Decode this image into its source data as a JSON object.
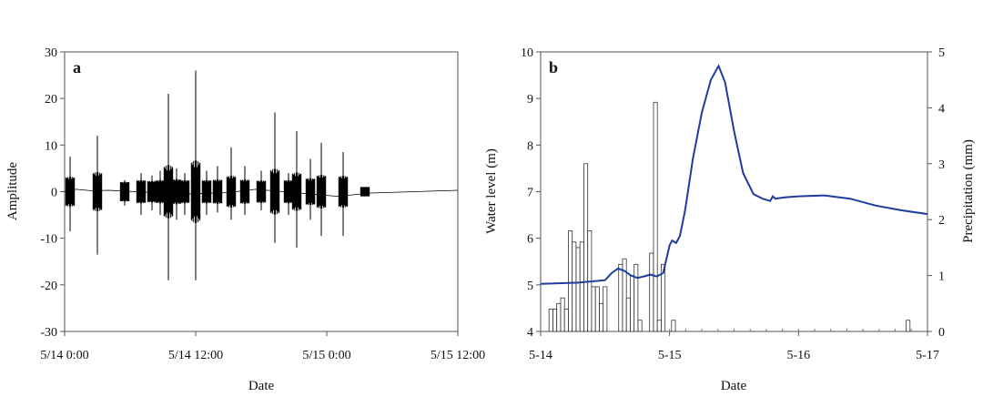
{
  "chart_data": [
    {
      "type": "line",
      "panel_label": "a",
      "xlabel": "Date",
      "ylabel": "Amplitude",
      "ylim": [
        -30,
        30
      ],
      "yticks": [
        -30,
        -20,
        -10,
        0,
        10,
        20,
        30
      ],
      "xlim": [
        "5/14 0:00",
        "5/15 12:00"
      ],
      "xtick_labels": [
        "5/14 0:00",
        "5/14 12:00",
        "5/15 0:00",
        "5/15 12:00"
      ],
      "grid": false,
      "series": [
        {
          "color": "#000000",
          "bursts": [
            {
              "x": "5/14 0:30",
              "min": -8.5,
              "max": 7.5
            },
            {
              "x": "5/14 3:00",
              "min": -13.5,
              "max": 12.0
            },
            {
              "x": "5/14 5:30",
              "min": -3.0,
              "max": 2.5
            },
            {
              "x": "5/14 7:00",
              "min": -5.0,
              "max": 4.0
            },
            {
              "x": "5/14 8:00",
              "min": -4.0,
              "max": 3.5
            },
            {
              "x": "5/14 8:45",
              "min": -5.0,
              "max": 4.5
            },
            {
              "x": "5/14 9:30",
              "min": -19.0,
              "max": 21.0
            },
            {
              "x": "5/14 10:15",
              "min": -6.0,
              "max": 5.0
            },
            {
              "x": "5/14 11:00",
              "min": -5.0,
              "max": 4.0
            },
            {
              "x": "5/14 12:00",
              "min": -19.0,
              "max": 26.0
            },
            {
              "x": "5/14 13:00",
              "min": -5.0,
              "max": 4.5
            },
            {
              "x": "5/14 14:00",
              "min": -4.5,
              "max": 5.5
            },
            {
              "x": "5/14 15:15",
              "min": -6.0,
              "max": 9.5
            },
            {
              "x": "5/14 16:30",
              "min": -5.0,
              "max": 5.5
            },
            {
              "x": "5/14 18:00",
              "min": -4.0,
              "max": 4.5
            },
            {
              "x": "5/14 19:15",
              "min": -11.0,
              "max": 17.0
            },
            {
              "x": "5/14 20:30",
              "min": -5.0,
              "max": 4.0
            },
            {
              "x": "5/14 21:15",
              "min": -12.0,
              "max": 13.0
            },
            {
              "x": "5/14 22:30",
              "min": -6.0,
              "max": 7.0
            },
            {
              "x": "5/14 23:30",
              "min": -9.5,
              "max": 10.5
            },
            {
              "x": "5/15 1:30",
              "min": -9.5,
              "max": 8.5
            },
            {
              "x": "5/15 3:30",
              "min": -1.0,
              "max": 1.0
            }
          ],
          "baseline": [
            {
              "x": "5/14 0:00",
              "y": 0.0
            },
            {
              "x": "5/14 1:00",
              "y": 0.5
            },
            {
              "x": "5/14 2:30",
              "y": 0.2
            },
            {
              "x": "5/14 4:00",
              "y": 0.3
            },
            {
              "x": "5/14 11:00",
              "y": -0.5
            },
            {
              "x": "5/14 15:00",
              "y": -0.2
            },
            {
              "x": "5/14 17:30",
              "y": 0.5
            },
            {
              "x": "5/14 20:00",
              "y": 0.0
            },
            {
              "x": "5/15 1:00",
              "y": -1.0
            },
            {
              "x": "5/15 4:00",
              "y": -0.3
            },
            {
              "x": "5/15 12:00",
              "y": 0.3
            }
          ]
        }
      ]
    },
    {
      "type": "line",
      "panel_label": "b",
      "xlabel": "Date",
      "ylabel": "Water level (m)",
      "y2label": "Precipitation (mm)",
      "ylim": [
        4,
        10
      ],
      "yticks": [
        4,
        5,
        6,
        7,
        8,
        9,
        10
      ],
      "y2lim": [
        0,
        5
      ],
      "y2ticks": [
        0,
        1,
        2,
        3,
        4,
        5
      ],
      "xlim": [
        "5-14",
        "5-17"
      ],
      "xtick_labels": [
        "5-14",
        "5-15",
        "5-16",
        "5-17"
      ],
      "grid": false,
      "series": [
        {
          "name": "",
          "axis": "left",
          "kind": "line",
          "color": "#1f3c9e",
          "points": [
            [
              0.0,
              5.02
            ],
            [
              0.3,
              5.05
            ],
            [
              0.5,
              5.1
            ],
            [
              0.55,
              5.25
            ],
            [
              0.6,
              5.35
            ],
            [
              0.65,
              5.3
            ],
            [
              0.7,
              5.2
            ],
            [
              0.75,
              5.15
            ],
            [
              0.8,
              5.18
            ],
            [
              0.85,
              5.22
            ],
            [
              0.9,
              5.18
            ],
            [
              0.95,
              5.25
            ],
            [
              1.0,
              5.85
            ],
            [
              1.02,
              5.95
            ],
            [
              1.05,
              5.9
            ],
            [
              1.08,
              6.05
            ],
            [
              1.12,
              6.6
            ],
            [
              1.18,
              7.7
            ],
            [
              1.25,
              8.7
            ],
            [
              1.32,
              9.4
            ],
            [
              1.38,
              9.7
            ],
            [
              1.43,
              9.35
            ],
            [
              1.5,
              8.3
            ],
            [
              1.57,
              7.4
            ],
            [
              1.65,
              6.95
            ],
            [
              1.72,
              6.85
            ],
            [
              1.78,
              6.8
            ],
            [
              1.8,
              6.9
            ],
            [
              1.82,
              6.85
            ],
            [
              1.9,
              6.88
            ],
            [
              2.0,
              6.9
            ],
            [
              2.2,
              6.92
            ],
            [
              2.4,
              6.85
            ],
            [
              2.6,
              6.7
            ],
            [
              2.8,
              6.6
            ],
            [
              3.0,
              6.52
            ]
          ]
        },
        {
          "name": "",
          "axis": "right",
          "kind": "bar",
          "color": "#999999",
          "bars": [
            [
              0.08,
              0.4
            ],
            [
              0.11,
              0.4
            ],
            [
              0.14,
              0.5
            ],
            [
              0.17,
              0.6
            ],
            [
              0.2,
              0.4
            ],
            [
              0.23,
              1.8
            ],
            [
              0.26,
              1.6
            ],
            [
              0.29,
              1.5
            ],
            [
              0.32,
              1.6
            ],
            [
              0.35,
              3.0
            ],
            [
              0.38,
              1.8
            ],
            [
              0.41,
              0.8
            ],
            [
              0.44,
              0.8
            ],
            [
              0.47,
              0.5
            ],
            [
              0.5,
              0.8
            ],
            [
              0.62,
              1.2
            ],
            [
              0.65,
              1.3
            ],
            [
              0.68,
              0.6
            ],
            [
              0.71,
              1.0
            ],
            [
              0.74,
              1.2
            ],
            [
              0.77,
              0.2
            ],
            [
              0.86,
              1.4
            ],
            [
              0.89,
              4.1
            ],
            [
              0.92,
              0.2
            ],
            [
              0.95,
              1.2
            ],
            [
              1.03,
              0.2
            ],
            [
              2.85,
              0.2
            ]
          ]
        }
      ]
    }
  ]
}
